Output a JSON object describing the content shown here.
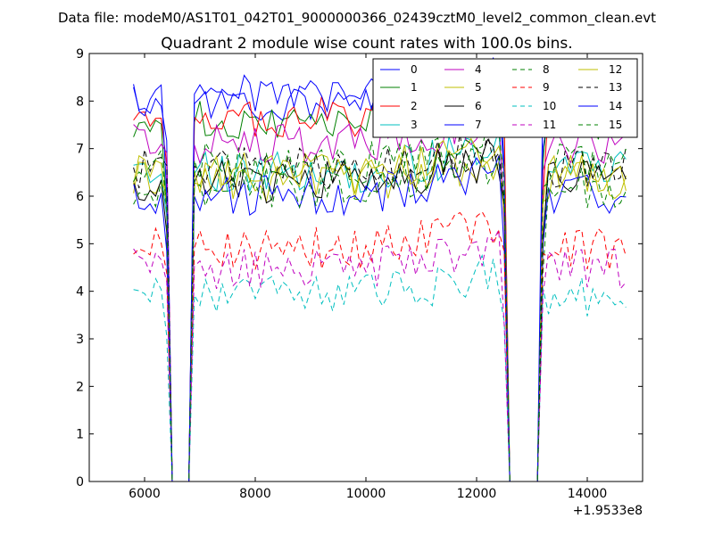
{
  "figure": {
    "suptitle": "Data file: modeM0/AS1T01_042T01_9000000366_02439cztM0_level2_common_clean.evt"
  },
  "chart_data": {
    "type": "line",
    "title": "Quadrant 2 module wise count rates with 100.0s bins.",
    "xlabel": "",
    "ylabel": "",
    "x_offset_label": "+1.9533e8",
    "xlim": [
      5000,
      15000
    ],
    "ylim": [
      0,
      9
    ],
    "xticks": [
      6000,
      8000,
      10000,
      12000,
      14000
    ],
    "yticks": [
      0,
      1,
      2,
      3,
      4,
      5,
      6,
      7,
      8,
      9
    ],
    "grid": false,
    "legend_position": "top-right",
    "legend_columns": 4,
    "gap_zero_intervals": [
      [
        6500,
        6800
      ],
      [
        12600,
        13100
      ]
    ],
    "series": [
      {
        "name": "0",
        "color": "#0000ff",
        "style": "solid",
        "level": 8.0
      },
      {
        "name": "1",
        "color": "#008000",
        "style": "solid",
        "level": 7.6
      },
      {
        "name": "2",
        "color": "#ff0000",
        "style": "solid",
        "level": 7.7
      },
      {
        "name": "3",
        "color": "#00bfbf",
        "style": "solid",
        "level": 6.5
      },
      {
        "name": "4",
        "color": "#bf00bf",
        "style": "solid",
        "level": 7.1
      },
      {
        "name": "5",
        "color": "#bfbf00",
        "style": "solid",
        "level": 6.3
      },
      {
        "name": "6",
        "color": "#000000",
        "style": "solid",
        "level": 6.3
      },
      {
        "name": "7",
        "color": "#0000ff",
        "style": "solid",
        "level": 6.0
      },
      {
        "name": "8",
        "color": "#008000",
        "style": "dashed",
        "level": 6.2
      },
      {
        "name": "9",
        "color": "#ff0000",
        "style": "dashed",
        "level": 4.9
      },
      {
        "name": "10",
        "color": "#00bfbf",
        "style": "dashed",
        "level": 3.9
      },
      {
        "name": "11",
        "color": "#bf00bf",
        "style": "dashed",
        "level": 4.5
      },
      {
        "name": "12",
        "color": "#bfbf00",
        "style": "solid",
        "level": 6.5
      },
      {
        "name": "13",
        "color": "#000000",
        "style": "dashed",
        "level": 6.6
      },
      {
        "name": "14",
        "color": "#0000ff",
        "style": "solid",
        "level": 8.1
      },
      {
        "name": "15",
        "color": "#008000",
        "style": "dashed",
        "level": 6.7
      }
    ]
  }
}
